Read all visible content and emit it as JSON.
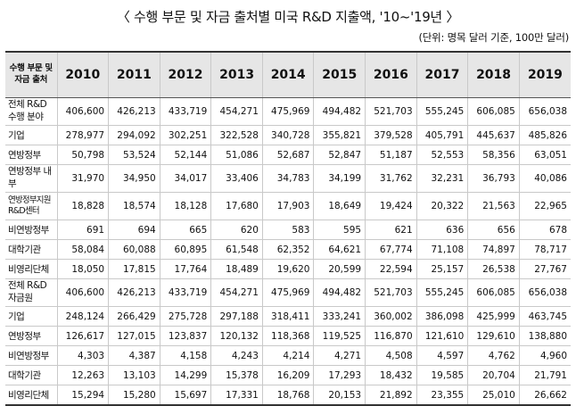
{
  "title": "〈 수행 부문 및 자금 출처별 미국 R&D 지출액, '10~'19년 〉",
  "unit": "(단위: 명목 달러 기준, 100만 달러)",
  "table": {
    "corner_label": "수행 부문 및 자금 출처",
    "years": [
      "2010",
      "2011",
      "2012",
      "2013",
      "2014",
      "2015",
      "2016",
      "2017",
      "2018",
      "2019"
    ],
    "rows": [
      {
        "label": "전체 R&D 수행 분야",
        "values": [
          "406,600",
          "426,213",
          "433,719",
          "454,271",
          "475,969",
          "494,482",
          "521,703",
          "555,245",
          "606,085",
          "656,038"
        ]
      },
      {
        "label": "기업",
        "values": [
          "278,977",
          "294,092",
          "302,251",
          "322,528",
          "340,728",
          "355,821",
          "379,528",
          "405,791",
          "445,637",
          "485,826"
        ]
      },
      {
        "label": "연방정부",
        "values": [
          "50,798",
          "53,524",
          "52,144",
          "51,086",
          "52,687",
          "52,847",
          "51,187",
          "52,553",
          "58,356",
          "63,051"
        ]
      },
      {
        "label": "연방정부 내부",
        "values": [
          "31,970",
          "34,950",
          "34,017",
          "33,406",
          "34,783",
          "34,199",
          "31,762",
          "32,231",
          "36,793",
          "40,086"
        ]
      },
      {
        "label": "연방정부지원 R&D센터",
        "values": [
          "18,828",
          "18,574",
          "18,128",
          "17,680",
          "17,903",
          "18,649",
          "19,424",
          "20,322",
          "21,563",
          "22,965"
        ]
      },
      {
        "label": "비연방정부",
        "values": [
          "691",
          "694",
          "665",
          "620",
          "583",
          "595",
          "621",
          "636",
          "656",
          "678"
        ]
      },
      {
        "label": "대학기관",
        "values": [
          "58,084",
          "60,088",
          "60,895",
          "61,548",
          "62,352",
          "64,621",
          "67,774",
          "71,108",
          "74,897",
          "78,717"
        ]
      },
      {
        "label": "비영리단체",
        "values": [
          "18,050",
          "17,815",
          "17,764",
          "18,489",
          "19,620",
          "20,599",
          "22,594",
          "25,157",
          "26,538",
          "27,767"
        ]
      },
      {
        "label": "전체 R&D 자금원",
        "values": [
          "406,600",
          "426,213",
          "433,719",
          "454,271",
          "475,969",
          "494,482",
          "521,703",
          "555,245",
          "606,085",
          "656,038"
        ]
      },
      {
        "label": "기업",
        "values": [
          "248,124",
          "266,429",
          "275,728",
          "297,188",
          "318,411",
          "333,241",
          "360,002",
          "386,098",
          "425,999",
          "463,745"
        ]
      },
      {
        "label": "연방정부",
        "values": [
          "126,617",
          "127,015",
          "123,837",
          "120,132",
          "118,368",
          "119,525",
          "116,870",
          "121,610",
          "129,610",
          "138,880"
        ]
      },
      {
        "label": "비연방정부",
        "values": [
          "4,303",
          "4,387",
          "4,158",
          "4,243",
          "4,214",
          "4,271",
          "4,508",
          "4,597",
          "4,762",
          "4,960"
        ]
      },
      {
        "label": "대학기관",
        "values": [
          "12,263",
          "13,103",
          "14,299",
          "15,378",
          "16,209",
          "17,293",
          "18,432",
          "19,585",
          "20,704",
          "21,791"
        ]
      },
      {
        "label": "비영리단체",
        "values": [
          "15,294",
          "15,280",
          "15,697",
          "17,331",
          "18,768",
          "20,153",
          "21,892",
          "23,355",
          "25,010",
          "26,662"
        ]
      }
    ]
  }
}
